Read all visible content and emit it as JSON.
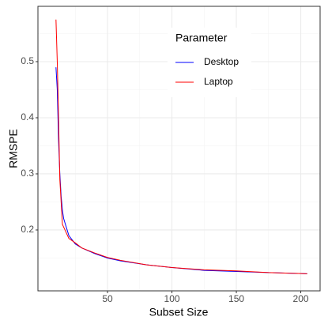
{
  "chart_data": {
    "type": "line",
    "x_label": "Subset Size",
    "y_label": "RMSPE",
    "x": [
      10,
      11,
      12,
      13,
      14,
      15,
      16,
      18,
      20,
      25,
      30,
      40,
      50,
      60,
      80,
      100,
      125,
      150,
      175,
      205
    ],
    "series": [
      {
        "name": "Desktop",
        "color": "#0000ff",
        "values": [
          0.49,
          0.45,
          0.36,
          0.3,
          0.26,
          0.235,
          0.22,
          0.205,
          0.19,
          0.175,
          0.168,
          0.158,
          0.15,
          0.145,
          0.138,
          0.133,
          0.128,
          0.126,
          0.124,
          0.122
        ]
      },
      {
        "name": "Laptop",
        "color": "#ff0000",
        "values": [
          0.575,
          0.5,
          0.4,
          0.29,
          0.25,
          0.21,
          0.205,
          0.195,
          0.185,
          0.177,
          0.168,
          0.159,
          0.151,
          0.146,
          0.138,
          0.133,
          0.129,
          0.127,
          0.124,
          0.122
        ]
      }
    ],
    "legend_title": "Parameter",
    "legend": "top-right",
    "xlim": [
      -4,
      215
    ],
    "xticks": [
      50,
      100,
      150,
      200
    ],
    "xminor": [
      25,
      75,
      125,
      175
    ],
    "ylim": [
      0.0915,
      0.5986
    ],
    "yticks": [
      0.2,
      0.3,
      0.4,
      0.5
    ],
    "yminor": [
      0.15,
      0.25,
      0.35,
      0.45,
      0.55
    ],
    "grid": true
  }
}
